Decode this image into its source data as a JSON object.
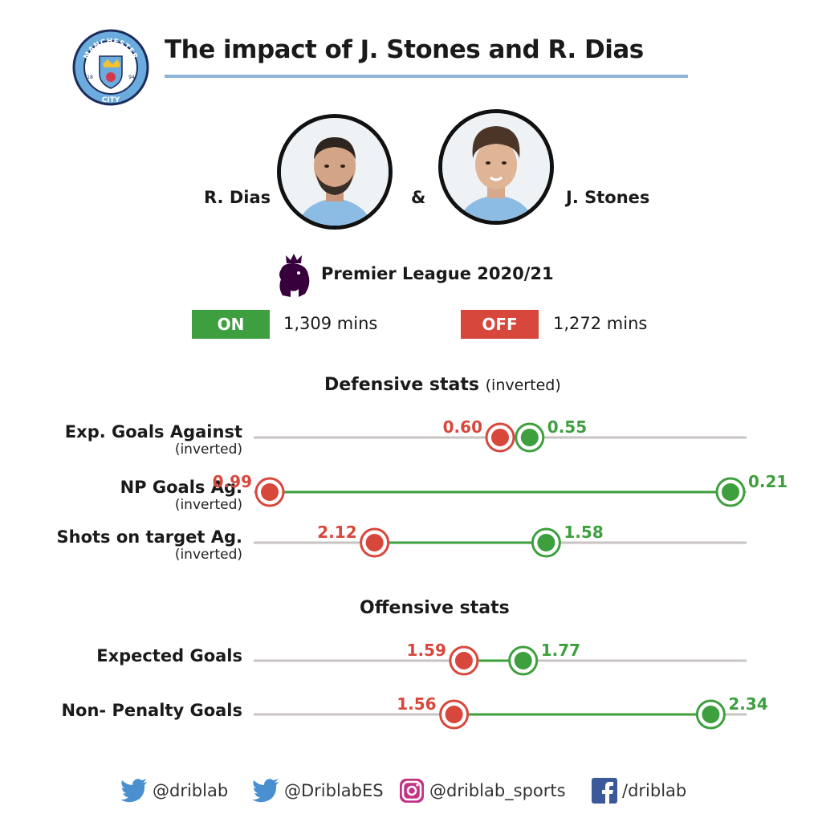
{
  "header": {
    "title": "The impact of J. Stones and R. Dias",
    "crest": {
      "top_text": "MANCHESTER",
      "bottom_text": "CITY",
      "year_left": "18",
      "year_right": "94"
    }
  },
  "players": {
    "left": "R. Dias",
    "amp": "&",
    "right": "J. Stones"
  },
  "league": {
    "label": "Premier League 2020/21",
    "icon": "premier-league-lion"
  },
  "on_off": {
    "on_label": "ON",
    "on_mins": "1,309 mins",
    "off_label": "OFF",
    "off_mins": "1,272 mins"
  },
  "colors": {
    "on": "#3e9f3e",
    "off": "#d8473c",
    "track": "#c9c3c3",
    "accent": "#8fb3d6"
  },
  "sections": {
    "defensive": {
      "title": "Defensive stats",
      "note": "(inverted)"
    },
    "offensive": {
      "title": "Offensive stats"
    }
  },
  "chart_data": {
    "type": "dumbbell",
    "series": [
      {
        "name": "ON"
      },
      {
        "name": "OFF"
      }
    ],
    "rows": [
      {
        "label": "Exp. Goals Against",
        "sub": "(inverted)",
        "section": "defensive",
        "off": 0.6,
        "on": 0.55,
        "inverted": true
      },
      {
        "label": "NP Goals Ag.",
        "sub": "(inverted)",
        "section": "defensive",
        "off": 0.99,
        "on": 0.21,
        "inverted": true
      },
      {
        "label": "Shots on target Ag.",
        "sub": "(inverted)",
        "section": "defensive",
        "off": 2.12,
        "on": 1.58,
        "inverted": true
      },
      {
        "label": "Expected Goals",
        "sub": "",
        "section": "offensive",
        "off": 1.59,
        "on": 1.77,
        "inverted": false
      },
      {
        "label": "Non- Penalty Goals",
        "sub": "",
        "section": "offensive",
        "off": 1.56,
        "on": 2.34,
        "inverted": false
      }
    ]
  },
  "footer": {
    "twitter_1": "@driblab",
    "twitter_2": "@DriblabES",
    "instagram": "@driblab_sports",
    "facebook": "/driblab"
  }
}
